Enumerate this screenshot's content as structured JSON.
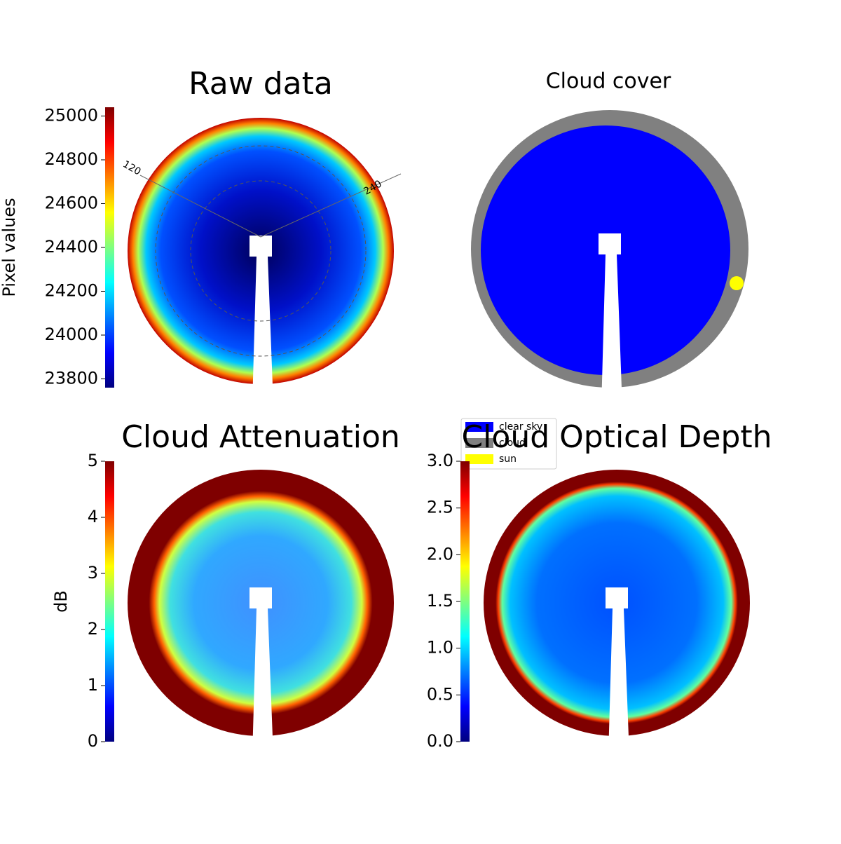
{
  "chart_data": [
    {
      "type": "image",
      "title": "Raw data",
      "colorbar_label": "Pixel values",
      "colormap": "jet",
      "clim": [
        23760,
        25040
      ],
      "cticks": [
        23800,
        24000,
        24200,
        24400,
        24600,
        24800,
        25000
      ],
      "annotations": [
        "120",
        "240"
      ]
    },
    {
      "type": "image",
      "title": "Cloud cover",
      "series": [
        {
          "name": "clear sky",
          "color": "#0000ff"
        },
        {
          "name": "cloud",
          "color": "#808080"
        },
        {
          "name": "sun",
          "color": "#ffff00"
        }
      ]
    },
    {
      "type": "image",
      "title": "Cloud Attenuation",
      "colorbar_label": "dB",
      "colormap": "jet",
      "clim": [
        0,
        5
      ],
      "cticks": [
        0,
        1,
        2,
        3,
        4,
        5
      ]
    },
    {
      "type": "image",
      "title": "Cloud Optical Depth",
      "colormap": "jet",
      "clim": [
        0,
        3
      ],
      "cticks": [
        {
          "value": 0,
          "label": "0.0"
        },
        {
          "value": 0.5,
          "label": "0.5"
        },
        {
          "value": 1,
          "label": "1.0"
        },
        {
          "value": 1.5,
          "label": "1.5"
        },
        {
          "value": 2,
          "label": "2.0"
        },
        {
          "value": 2.5,
          "label": "2.5"
        },
        {
          "value": 3,
          "label": "3.0"
        }
      ]
    }
  ]
}
